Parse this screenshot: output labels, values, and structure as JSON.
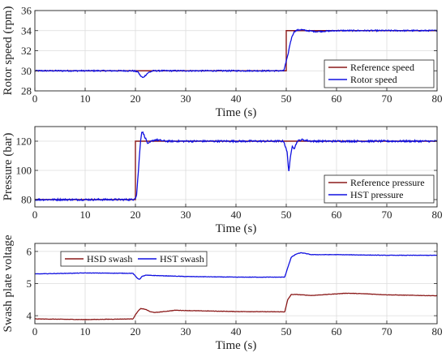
{
  "chart_data": [
    {
      "type": "line",
      "xlabel": "Time (s)",
      "ylabel": "Rotor speed (rpm)",
      "xlim": [
        0,
        80
      ],
      "ylim": [
        28,
        36
      ],
      "xticks": [
        0,
        10,
        20,
        30,
        40,
        50,
        60,
        70,
        80
      ],
      "yticks": [
        28,
        30,
        32,
        34,
        36
      ],
      "grid": true,
      "legend_position": "bottom-right",
      "series": [
        {
          "name": "Reference speed",
          "color": "#8B1A1A",
          "x": [
            0,
            50,
            50,
            80
          ],
          "y": [
            30,
            30,
            34,
            34
          ]
        },
        {
          "name": "Rotor speed",
          "color": "#1010E0",
          "x": [
            0,
            10,
            19.5,
            20.5,
            21,
            21.5,
            22.5,
            23.5,
            30,
            40,
            49.5,
            50.3,
            50.8,
            51.2,
            51.6,
            52.2,
            53,
            54,
            56,
            60,
            70,
            80
          ],
          "y": [
            30,
            30,
            30,
            29.9,
            29.5,
            29.3,
            29.8,
            30,
            30,
            30,
            30,
            31.5,
            32.8,
            33.5,
            33.9,
            34.05,
            34.1,
            34,
            33.9,
            34,
            34,
            34
          ]
        }
      ]
    },
    {
      "type": "line",
      "xlabel": "Time (s)",
      "ylabel": "Pressure (bar)",
      "xlim": [
        0,
        80
      ],
      "ylim": [
        75,
        130
      ],
      "xticks": [
        0,
        10,
        20,
        30,
        40,
        50,
        60,
        70,
        80
      ],
      "yticks": [
        80,
        100,
        120
      ],
      "grid": true,
      "legend_position": "bottom-right",
      "series": [
        {
          "name": "Reference pressure",
          "color": "#8B1A1A",
          "x": [
            0,
            20,
            20,
            80
          ],
          "y": [
            80,
            80,
            120,
            120
          ]
        },
        {
          "name": "HST pressure",
          "color": "#1010E0",
          "x": [
            0,
            10,
            19.5,
            20.2,
            20.6,
            21,
            21.3,
            21.6,
            22,
            22.5,
            23.2,
            24,
            26,
            30,
            40,
            49.5,
            50.2,
            50.5,
            50.8,
            51.2,
            51.6,
            52.2,
            53,
            55,
            60,
            70,
            80
          ],
          "y": [
            80,
            80,
            80,
            82,
            100,
            120,
            127,
            125,
            122,
            118,
            120,
            121,
            120,
            120,
            120,
            120,
            112,
            99,
            108,
            117,
            115,
            120,
            121,
            120,
            120,
            120,
            120
          ]
        }
      ]
    },
    {
      "type": "line",
      "xlabel": "Time (s)",
      "ylabel": "Swash plate voltage",
      "xlim": [
        0,
        80
      ],
      "ylim": [
        3.75,
        6.25
      ],
      "xticks": [
        0,
        10,
        20,
        30,
        40,
        50,
        60,
        70,
        80
      ],
      "yticks": [
        4,
        5,
        6
      ],
      "grid": true,
      "legend_position": "top-left",
      "series": [
        {
          "name": "HSD swash",
          "color": "#8B1A1A",
          "x": [
            0,
            10,
            19.5,
            20.3,
            21,
            22,
            23,
            24,
            28,
            30,
            40,
            49.7,
            50.3,
            51,
            52,
            55,
            62,
            66,
            70,
            80
          ],
          "y": [
            3.9,
            3.88,
            3.9,
            4.1,
            4.22,
            4.2,
            4.12,
            4.1,
            4.17,
            4.16,
            4.13,
            4.12,
            4.5,
            4.66,
            4.66,
            4.63,
            4.7,
            4.68,
            4.65,
            4.62
          ]
        },
        {
          "name": "HST swash",
          "color": "#1010E0",
          "x": [
            0,
            10,
            19.5,
            20.3,
            20.8,
            21.3,
            22,
            30,
            40,
            49.7,
            50.3,
            51,
            52,
            53,
            55,
            60,
            70,
            80
          ],
          "y": [
            5.3,
            5.33,
            5.32,
            5.18,
            5.13,
            5.22,
            5.26,
            5.22,
            5.2,
            5.2,
            5.5,
            5.82,
            5.92,
            5.96,
            5.9,
            5.9,
            5.88,
            5.88
          ]
        }
      ]
    }
  ]
}
